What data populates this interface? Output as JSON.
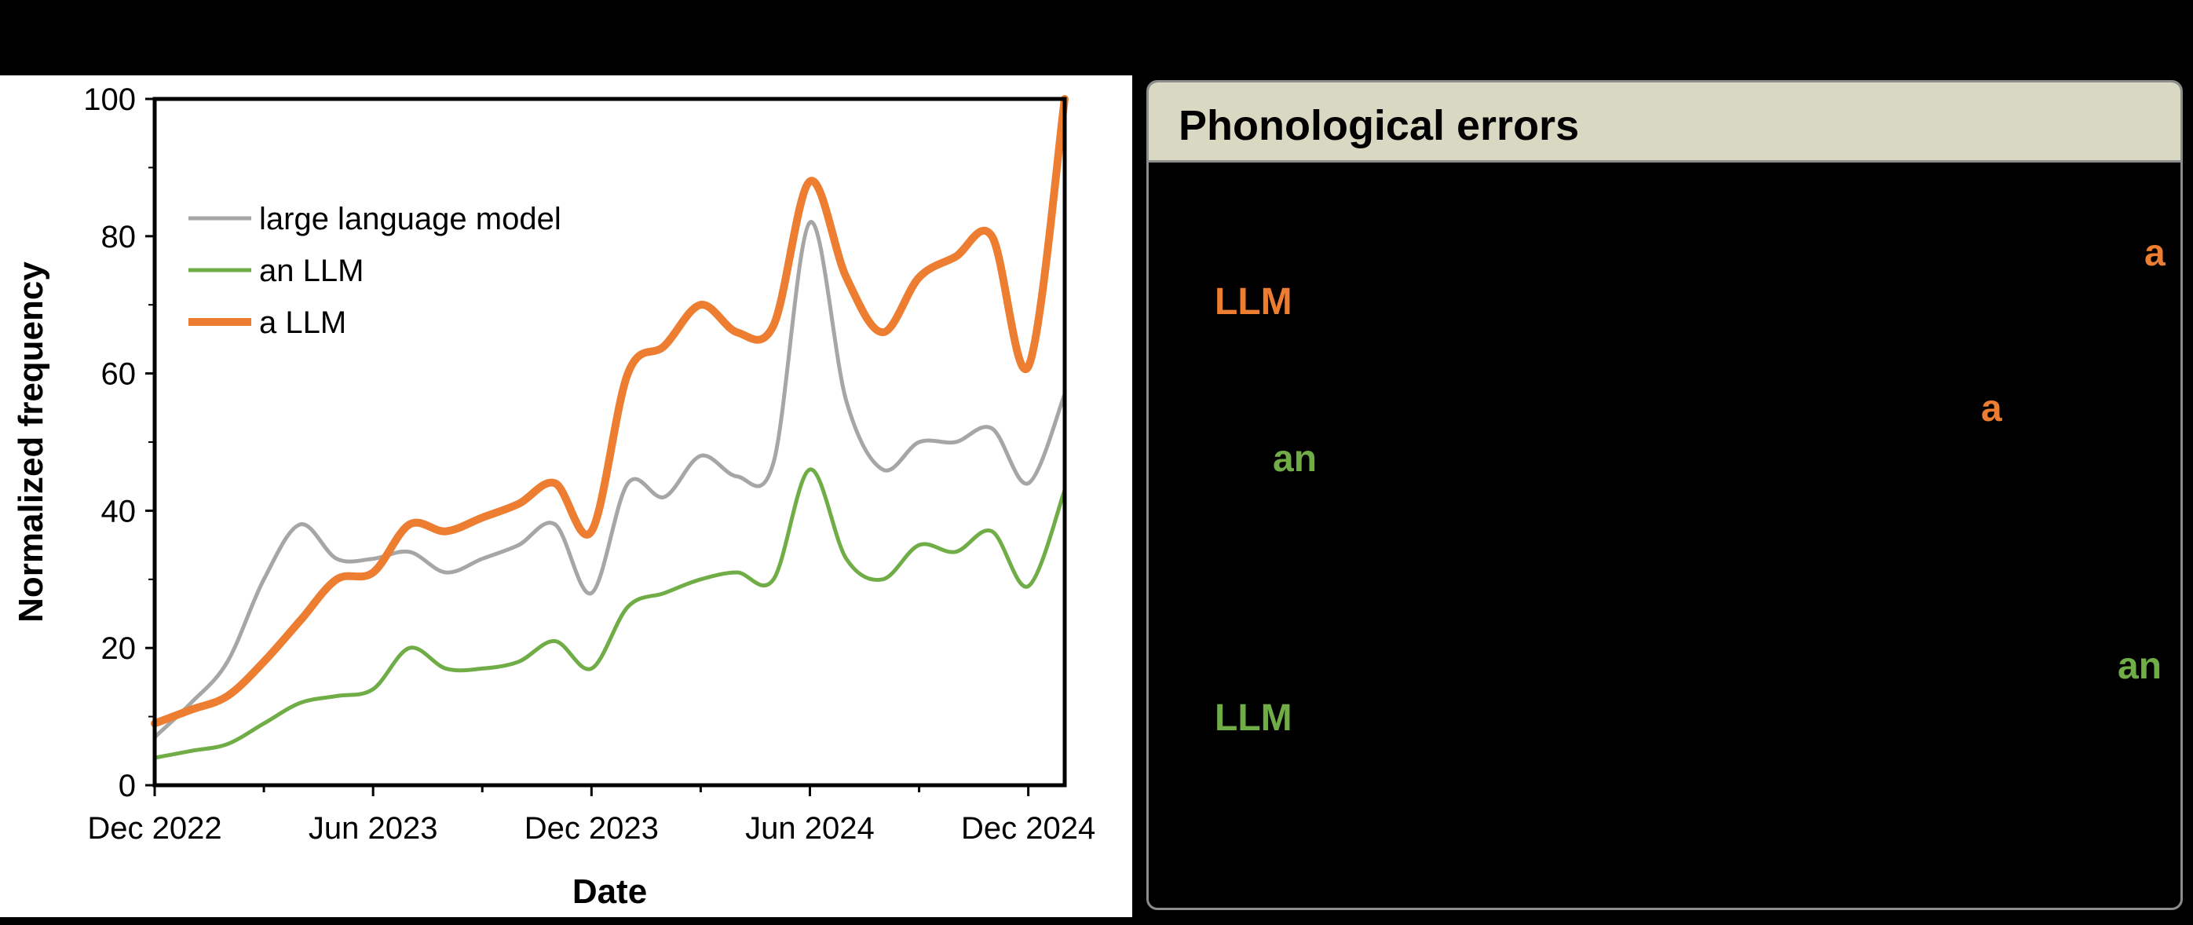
{
  "chart_data": {
    "type": "line",
    "xlabel": "Date",
    "ylabel": "Normalized frequency",
    "ylim": [
      0,
      100
    ],
    "yticks": [
      0,
      20,
      40,
      60,
      80,
      100
    ],
    "xlim": [
      "2022-12",
      "2025-01"
    ],
    "xticks": [
      "Dec 2022",
      "Jun 2023",
      "Dec 2023",
      "Jun 2024",
      "Dec 2024"
    ],
    "legend": "top-left",
    "x": [
      "2022-12",
      "2023-01",
      "2023-02",
      "2023-03",
      "2023-04",
      "2023-05",
      "2023-06",
      "2023-07",
      "2023-08",
      "2023-09",
      "2023-10",
      "2023-11",
      "2023-12",
      "2024-01",
      "2024-02",
      "2024-03",
      "2024-04",
      "2024-05",
      "2024-06",
      "2024-07",
      "2024-08",
      "2024-09",
      "2024-10",
      "2024-11",
      "2024-12",
      "2025-01"
    ],
    "series": [
      {
        "name": "large language model",
        "color": "#a6a6a6",
        "values": [
          7,
          12,
          18,
          30,
          38,
          33,
          33,
          34,
          31,
          33,
          35,
          38,
          28,
          44,
          42,
          48,
          45,
          47,
          82,
          56,
          46,
          50,
          50,
          52,
          44,
          57
        ]
      },
      {
        "name": "an LLM",
        "color": "#70ad47",
        "values": [
          4,
          5,
          6,
          9,
          12,
          13,
          14,
          20,
          17,
          17,
          18,
          21,
          17,
          26,
          28,
          30,
          31,
          30,
          46,
          33,
          30,
          35,
          34,
          37,
          29,
          43
        ]
      },
      {
        "name": "a LLM",
        "color": "#ed7d31",
        "values": [
          9,
          11,
          13,
          18,
          24,
          30,
          31,
          38,
          37,
          39,
          41,
          44,
          37,
          60,
          64,
          70,
          66,
          67,
          88,
          74,
          66,
          74,
          77,
          80,
          61,
          100
        ]
      }
    ]
  },
  "panel": {
    "title": "Phonological errors",
    "tokens": [
      {
        "text": "a",
        "color": "#ed7d31"
      },
      {
        "text": "LLM",
        "color": "#ed7d31"
      },
      {
        "text": "a",
        "color": "#ed7d31"
      },
      {
        "text": "an",
        "color": "#70ad47"
      },
      {
        "text": "an",
        "color": "#70ad47"
      },
      {
        "text": "LLM",
        "color": "#70ad47"
      }
    ]
  }
}
